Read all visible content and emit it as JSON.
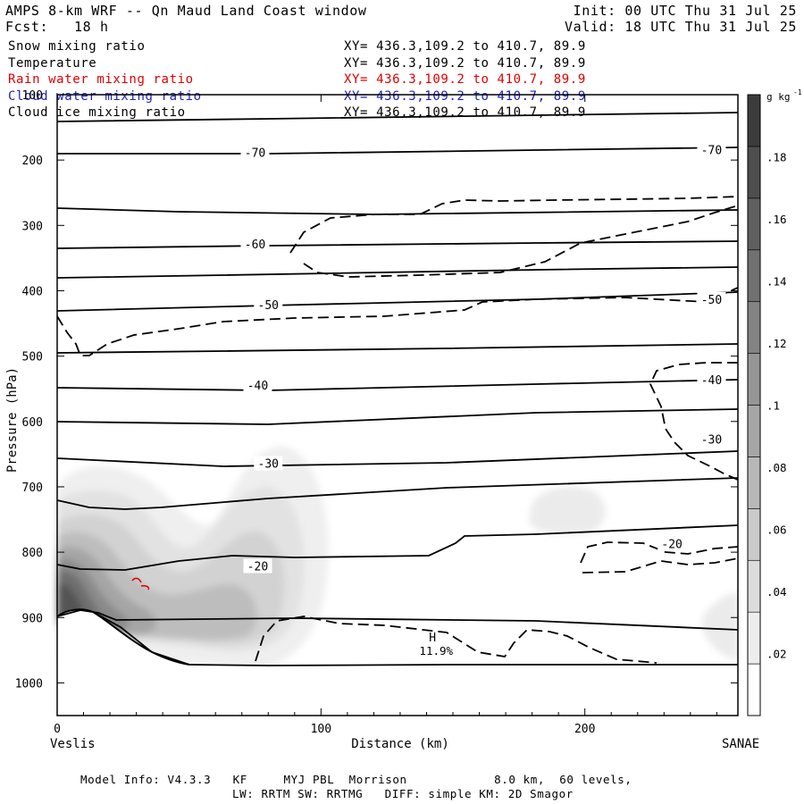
{
  "header": {
    "title": "AMPS 8-km WRF -- Qn Maud Land Coast window",
    "init": "Init: 00 UTC Thu 31 Jul 25",
    "forecast": "Fcst:   18 h",
    "valid": "Valid: 18 UTC Thu 31 Jul 25"
  },
  "fields": [
    {
      "name": "Snow mixing ratio",
      "xy": "XY= 436.3,109.2 to 410.7, 89.9",
      "color": "#000000"
    },
    {
      "name": "Temperature",
      "xy": "XY= 436.3,109.2 to 410.7, 89.9",
      "color": "#000000"
    },
    {
      "name": "Rain water mixing ratio",
      "xy": "XY= 436.3,109.2 to 410.7, 89.9",
      "color": "#e00000"
    },
    {
      "name": "Cloud water mixing ratio",
      "xy": "XY= 436.3,109.2 to 410.7, 89.9",
      "color": "#2020c0"
    },
    {
      "name": "Cloud ice mixing ratio",
      "xy": "XY= 436.3,109.2 to 410.7, 89.9",
      "color": "#000000"
    }
  ],
  "footer": {
    "line1": "Model Info: V4.3.3   KF     MYJ PBL  Morrison            8.0 km,  60 levels,",
    "line2": "LW: RRTM SW: RRTMG   DIFF: simple KM: 2D Smagor"
  },
  "chart_data": {
    "type": "cross-section",
    "xlabel": "Distance (km)",
    "ylabel": "Pressure (hPa)",
    "xlim": [
      0,
      258
    ],
    "ylim": [
      1050,
      100
    ],
    "x_ticks": [
      0,
      100,
      200
    ],
    "y_ticks": [
      100,
      200,
      300,
      400,
      500,
      600,
      700,
      800,
      900,
      1000
    ],
    "left_endpoint": "Veslis",
    "right_endpoint": "SANAE",
    "colorbar": {
      "unit": "g kg",
      "unit_sup": "-1",
      "ticks": [
        ".02",
        ".04",
        ".06",
        ".08",
        ".1",
        ".12",
        ".14",
        ".16",
        ".18"
      ],
      "range": [
        0,
        0.2
      ]
    },
    "isotherm_labels": [
      {
        "label": "-70",
        "x": 75,
        "p": 188
      },
      {
        "label": "-70",
        "x": 248,
        "p": 184
      },
      {
        "label": "-60",
        "x": 75,
        "p": 328
      },
      {
        "label": "-50",
        "x": 80,
        "p": 421
      },
      {
        "label": "-50",
        "x": 248,
        "p": 413
      },
      {
        "label": "-40",
        "x": 76,
        "p": 544
      },
      {
        "label": "-40",
        "x": 248,
        "p": 536
      },
      {
        "label": "-30",
        "x": 80,
        "p": 664
      },
      {
        "label": "-30",
        "x": 248,
        "p": 627
      },
      {
        "label": "-20",
        "x": 76,
        "p": 821
      },
      {
        "label": "-20",
        "x": 233,
        "p": 787
      }
    ],
    "high_label": {
      "label": "H",
      "value": "11.9%",
      "x": 145,
      "p": 950
    }
  }
}
